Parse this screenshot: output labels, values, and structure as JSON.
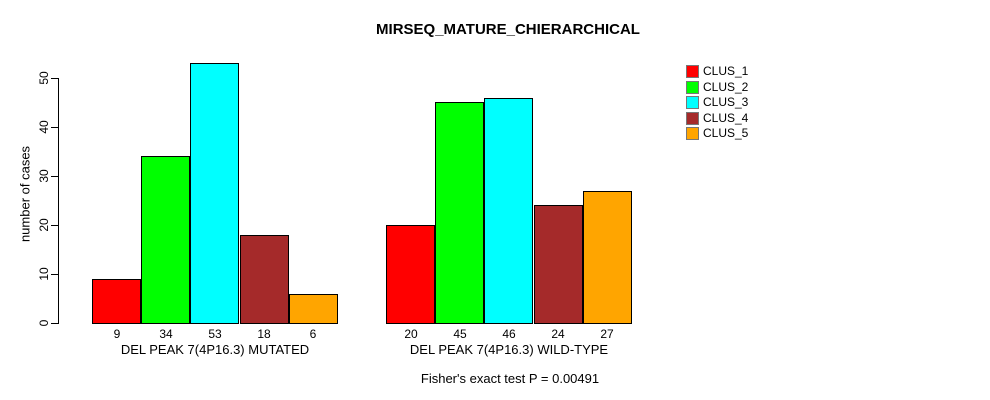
{
  "title": "MIRSEQ_MATURE_CHIERARCHICAL",
  "subtitle": "Fisher's exact test P = 0.00491",
  "chart_data": {
    "type": "bar",
    "title": "MIRSEQ_MATURE_CHIERARCHICAL",
    "xlabel": "",
    "ylabel": "number of cases",
    "ylim": [
      0,
      53
    ],
    "yticks": [
      0,
      10,
      20,
      30,
      40,
      50
    ],
    "grid": false,
    "bar_value_labels": true,
    "legend_position": "top-right",
    "categories": [
      "DEL PEAK  7(4P16.3) MUTATED",
      "DEL PEAK  7(4P16.3) WILD-TYPE"
    ],
    "series": [
      {
        "name": "CLUS_1",
        "color": "#FF0000",
        "values": [
          9,
          20
        ]
      },
      {
        "name": "CLUS_2",
        "color": "#00FF00",
        "values": [
          34,
          45
        ]
      },
      {
        "name": "CLUS_3",
        "color": "#00FFFF",
        "values": [
          53,
          46
        ]
      },
      {
        "name": "CLUS_4",
        "color": "#A52A2A",
        "values": [
          18,
          24
        ]
      },
      {
        "name": "CLUS_5",
        "color": "#FFA500",
        "values": [
          6,
          27
        ]
      }
    ],
    "annotation": "Fisher's exact test P = 0.00491"
  }
}
